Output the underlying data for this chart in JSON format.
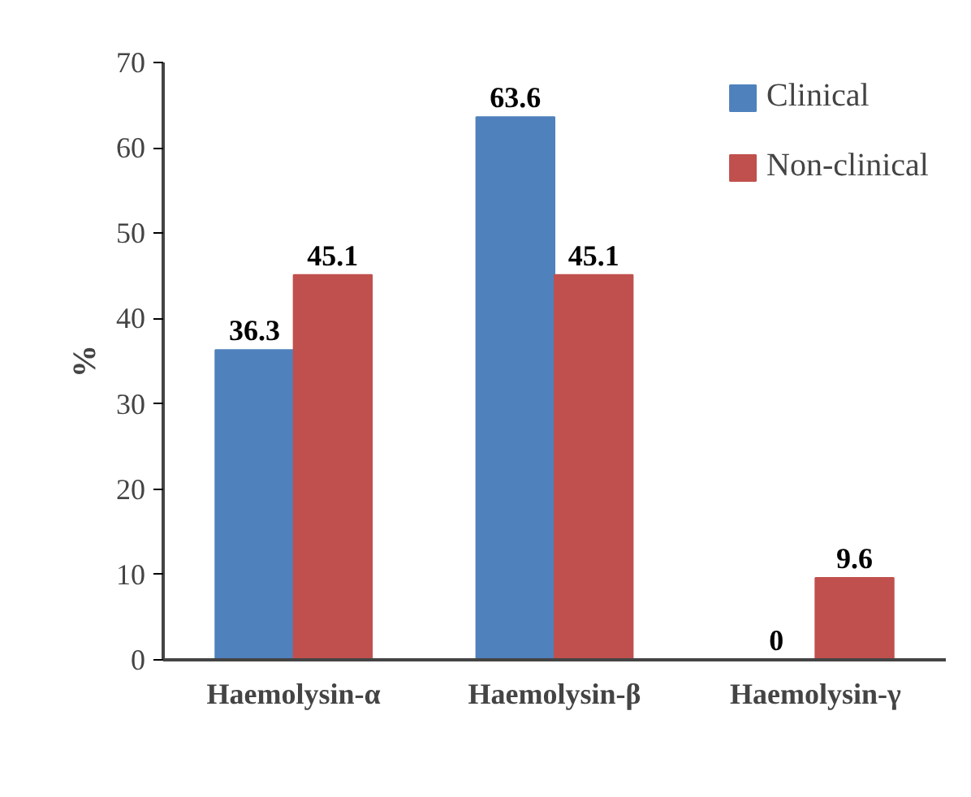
{
  "chart_data": {
    "type": "bar",
    "ylabel": "%",
    "categories": [
      "Haemolysin-α",
      "Haemolysin-β",
      "Haemolysin-γ"
    ],
    "series": [
      {
        "name": "Clinical",
        "color": "#4f81bd",
        "values": [
          36.3,
          63.6,
          0
        ]
      },
      {
        "name": "Non-clinical",
        "color": "#c0504d",
        "values": [
          45.1,
          45.1,
          9.6
        ]
      }
    ],
    "ylim": [
      0,
      70
    ],
    "yticks": [
      0,
      10,
      20,
      30,
      40,
      50,
      60,
      70
    ],
    "grid": false,
    "legend": "top right",
    "data_labels": true
  }
}
